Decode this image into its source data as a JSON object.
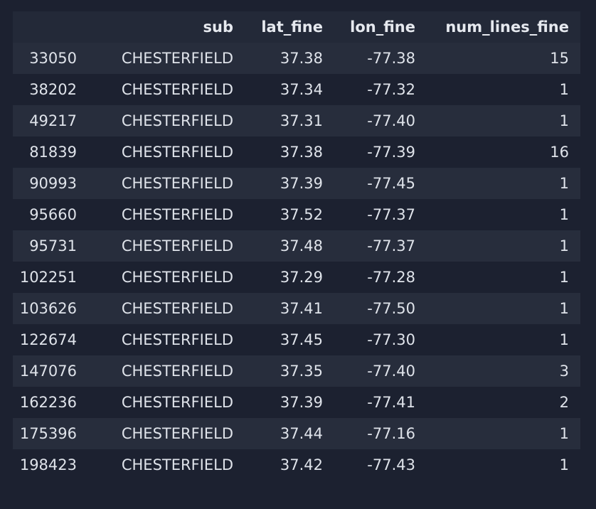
{
  "table": {
    "columns": [
      "",
      "sub",
      "lat_fine",
      "lon_fine",
      "num_lines_fine"
    ],
    "rows": [
      {
        "index": "33050",
        "sub": "CHESTERFIELD",
        "lat_fine": "37.38",
        "lon_fine": "-77.38",
        "num_lines_fine": "15"
      },
      {
        "index": "38202",
        "sub": "CHESTERFIELD",
        "lat_fine": "37.34",
        "lon_fine": "-77.32",
        "num_lines_fine": "1"
      },
      {
        "index": "49217",
        "sub": "CHESTERFIELD",
        "lat_fine": "37.31",
        "lon_fine": "-77.40",
        "num_lines_fine": "1"
      },
      {
        "index": "81839",
        "sub": "CHESTERFIELD",
        "lat_fine": "37.38",
        "lon_fine": "-77.39",
        "num_lines_fine": "16"
      },
      {
        "index": "90993",
        "sub": "CHESTERFIELD",
        "lat_fine": "37.39",
        "lon_fine": "-77.45",
        "num_lines_fine": "1"
      },
      {
        "index": "95660",
        "sub": "CHESTERFIELD",
        "lat_fine": "37.52",
        "lon_fine": "-77.37",
        "num_lines_fine": "1"
      },
      {
        "index": "95731",
        "sub": "CHESTERFIELD",
        "lat_fine": "37.48",
        "lon_fine": "-77.37",
        "num_lines_fine": "1"
      },
      {
        "index": "102251",
        "sub": "CHESTERFIELD",
        "lat_fine": "37.29",
        "lon_fine": "-77.28",
        "num_lines_fine": "1"
      },
      {
        "index": "103626",
        "sub": "CHESTERFIELD",
        "lat_fine": "37.41",
        "lon_fine": "-77.50",
        "num_lines_fine": "1"
      },
      {
        "index": "122674",
        "sub": "CHESTERFIELD",
        "lat_fine": "37.45",
        "lon_fine": "-77.30",
        "num_lines_fine": "1"
      },
      {
        "index": "147076",
        "sub": "CHESTERFIELD",
        "lat_fine": "37.35",
        "lon_fine": "-77.40",
        "num_lines_fine": "3"
      },
      {
        "index": "162236",
        "sub": "CHESTERFIELD",
        "lat_fine": "37.39",
        "lon_fine": "-77.41",
        "num_lines_fine": "2"
      },
      {
        "index": "175396",
        "sub": "CHESTERFIELD",
        "lat_fine": "37.44",
        "lon_fine": "-77.16",
        "num_lines_fine": "1"
      },
      {
        "index": "198423",
        "sub": "CHESTERFIELD",
        "lat_fine": "37.42",
        "lon_fine": "-77.43",
        "num_lines_fine": "1"
      }
    ]
  },
  "colors": {
    "background": "#1c2130",
    "header_row": "#232938",
    "striped_row": "#272d3c",
    "text": "#dfe3ea"
  }
}
